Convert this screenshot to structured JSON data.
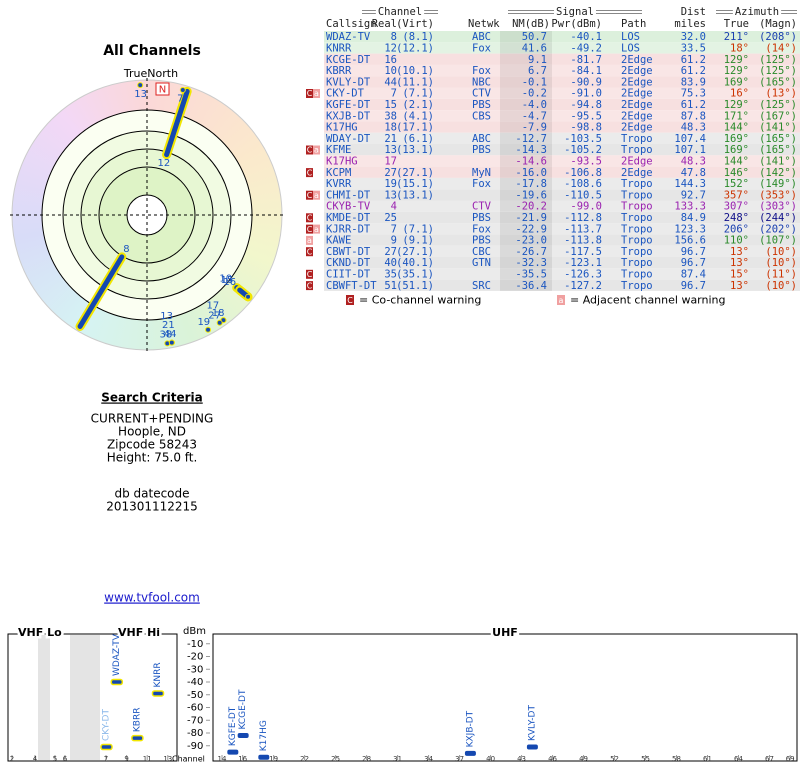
{
  "title": "All Channels",
  "polar": {
    "north_label": "TrueNorth",
    "north_marker": "N",
    "points": [
      {
        "channel": 8,
        "azimuth": 211,
        "nm": 50.7
      },
      {
        "channel": 12,
        "azimuth": 18,
        "nm": 41.6
      },
      {
        "channel": 16,
        "azimuth": 129,
        "nm": 9.1
      },
      {
        "channel": 10,
        "azimuth": 129,
        "nm": 6.7
      },
      {
        "channel": 44,
        "azimuth": 169,
        "nm": -0.1
      },
      {
        "channel": 7,
        "azimuth": 16,
        "nm": -0.2
      },
      {
        "channel": 15,
        "azimuth": 129,
        "nm": -4.0
      },
      {
        "channel": 38,
        "azimuth": 171,
        "nm": -4.7
      },
      {
        "channel": 18,
        "azimuth": 144,
        "nm": -7.9
      },
      {
        "channel": 21,
        "azimuth": 169,
        "nm": -12.7
      },
      {
        "channel": 13,
        "azimuth": 169,
        "nm": -14.3
      },
      {
        "channel": 17,
        "azimuth": 144,
        "nm": -14.6
      },
      {
        "channel": 27,
        "azimuth": 146,
        "nm": -16.0
      },
      {
        "channel": 19,
        "azimuth": 152,
        "nm": -17.8
      },
      {
        "channel": 13,
        "azimuth": 357,
        "nm": -19.6
      }
    ]
  },
  "criteria": {
    "heading": "Search Criteria",
    "lines": [
      "CURRENT+PENDING",
      "Hoople, ND",
      "Zipcode 58243",
      "Height: 75.0 ft."
    ],
    "datecode_label": "db datecode",
    "datecode": "201301112215",
    "link": "www.tvfool.com"
  },
  "table": {
    "groups": [
      "Channel",
      "Signal",
      "Dist",
      "Azimuth"
    ],
    "columns": [
      "Callsign",
      "Real",
      "(Virt)",
      "Netwk",
      "NM(dB)",
      "Pwr(dBm)",
      "Path",
      "miles",
      "True",
      "(Magn)"
    ],
    "path_colors": {
      "LOS": "#dcf0dc",
      "2Edge": "#f7e0e0",
      "Tropo": "#e6e6e6"
    },
    "rows": [
      {
        "callsign": "WDAZ-TV",
        "real": 8,
        "virt": "(8.1)",
        "netwk": "ABC",
        "nm": "50.7",
        "pwr": "-40.1",
        "path": "LOS",
        "dist": "32.0",
        "az": "211°",
        "magn": "(208°)",
        "warn": [],
        "color": "#1a55c0",
        "az_color": "#1a3fb0"
      },
      {
        "callsign": "KNRR",
        "real": 12,
        "virt": "(12.1)",
        "netwk": "Fox",
        "nm": "41.6",
        "pwr": "-49.2",
        "path": "LOS",
        "dist": "33.5",
        "az": "18°",
        "magn": "(14°)",
        "warn": [],
        "color": "#1a55c0",
        "az_color": "#cc3300"
      },
      {
        "callsign": "KCGE-DT",
        "real": 16,
        "virt": null,
        "netwk": null,
        "nm": "9.1",
        "pwr": "-81.7",
        "path": "2Edge",
        "dist": "61.2",
        "az": "129°",
        "magn": "(125°)",
        "warn": [],
        "color": "#1a55c0",
        "az_color": "#2a8a2a"
      },
      {
        "callsign": "KBRR",
        "real": 10,
        "virt": "(10.1)",
        "netwk": "Fox",
        "nm": "6.7",
        "pwr": "-84.1",
        "path": "2Edge",
        "dist": "61.2",
        "az": "129°",
        "magn": "(125°)",
        "warn": [],
        "color": "#1a55c0",
        "az_color": "#2a8a2a"
      },
      {
        "callsign": "KVLY-DT",
        "real": 44,
        "virt": "(11.1)",
        "netwk": "NBC",
        "nm": "-0.1",
        "pwr": "-90.9",
        "path": "2Edge",
        "dist": "83.9",
        "az": "169°",
        "magn": "(165°)",
        "warn": [],
        "color": "#1a55c0",
        "az_color": "#2a8a2a"
      },
      {
        "callsign": "CKY-DT",
        "real": 7,
        "virt": "(7.1)",
        "netwk": "CTV",
        "nm": "-0.2",
        "pwr": "-91.0",
        "path": "2Edge",
        "dist": "75.3",
        "az": "16°",
        "magn": "(13°)",
        "warn": [
          "C",
          "a"
        ],
        "color": "#1a55c0",
        "az_color": "#cc3300"
      },
      {
        "callsign": "KGFE-DT",
        "real": 15,
        "virt": "(2.1)",
        "netwk": "PBS",
        "nm": "-4.0",
        "pwr": "-94.8",
        "path": "2Edge",
        "dist": "61.2",
        "az": "129°",
        "magn": "(125°)",
        "warn": [],
        "color": "#1a55c0",
        "az_color": "#2a8a2a"
      },
      {
        "callsign": "KXJB-DT",
        "real": 38,
        "virt": "(4.1)",
        "netwk": "CBS",
        "nm": "-4.7",
        "pwr": "-95.5",
        "path": "2Edge",
        "dist": "87.8",
        "az": "171°",
        "magn": "(167°)",
        "warn": [],
        "color": "#1a55c0",
        "az_color": "#2a8a2a"
      },
      {
        "callsign": "K17HG",
        "real": 18,
        "virt": "(17.1)",
        "netwk": null,
        "nm": "-7.9",
        "pwr": "-98.8",
        "path": "2Edge",
        "dist": "48.3",
        "az": "144°",
        "magn": "(141°)",
        "warn": [],
        "color": "#1a55c0",
        "az_color": "#2a8a2a"
      },
      {
        "callsign": "WDAY-DT",
        "real": 21,
        "virt": "(6.1)",
        "netwk": "ABC",
        "nm": "-12.7",
        "pwr": "-103.5",
        "path": "Tropo",
        "dist": "107.4",
        "az": "169°",
        "magn": "(165°)",
        "warn": [],
        "color": "#1a55c0",
        "az_color": "#2a8a2a"
      },
      {
        "callsign": "KFME",
        "real": 13,
        "virt": "(13.1)",
        "netwk": "PBS",
        "nm": "-14.3",
        "pwr": "-105.2",
        "path": "Tropo",
        "dist": "107.1",
        "az": "169°",
        "magn": "(165°)",
        "warn": [
          "C",
          "a"
        ],
        "color": "#1a55c0",
        "az_color": "#2a8a2a"
      },
      {
        "callsign": "K17HG",
        "real": 17,
        "virt": null,
        "netwk": null,
        "nm": "-14.6",
        "pwr": "-93.5",
        "path": "2Edge",
        "dist": "48.3",
        "az": "144°",
        "magn": "(141°)",
        "warn": [],
        "color": "#9a22b0",
        "az_color": "#2a8a2a"
      },
      {
        "callsign": "KCPM",
        "real": 27,
        "virt": "(27.1)",
        "netwk": "MyN",
        "nm": "-16.0",
        "pwr": "-106.8",
        "path": "2Edge",
        "dist": "47.8",
        "az": "146°",
        "magn": "(142°)",
        "warn": [
          "C"
        ],
        "color": "#1a55c0",
        "az_color": "#2a8a2a"
      },
      {
        "callsign": "KVRR",
        "real": 19,
        "virt": "(15.1)",
        "netwk": "Fox",
        "nm": "-17.8",
        "pwr": "-108.6",
        "path": "Tropo",
        "dist": "144.3",
        "az": "152°",
        "magn": "(149°)",
        "warn": [],
        "color": "#1a55c0",
        "az_color": "#2a8a2a"
      },
      {
        "callsign": "CHMI-DT",
        "real": 13,
        "virt": "(13.1)",
        "netwk": null,
        "nm": "-19.6",
        "pwr": "-110.5",
        "path": "Tropo",
        "dist": "92.7",
        "az": "357°",
        "magn": "(353°)",
        "warn": [
          "C",
          "a"
        ],
        "color": "#1a55c0",
        "az_color": "#cc3300"
      },
      {
        "callsign": "CKYB-TV",
        "real": 4,
        "virt": null,
        "netwk": "CTV",
        "nm": "-20.2",
        "pwr": "-99.0",
        "path": "Tropo",
        "dist": "133.3",
        "az": "307°",
        "magn": "(303°)",
        "warn": [],
        "color": "#9a22b0",
        "az_color": "#9a22b0"
      },
      {
        "callsign": "KMDE-DT",
        "real": 25,
        "virt": null,
        "netwk": "PBS",
        "nm": "-21.9",
        "pwr": "-112.8",
        "path": "Tropo",
        "dist": "84.9",
        "az": "248°",
        "magn": "(244°)",
        "warn": [
          "C"
        ],
        "color": "#1a55c0",
        "az_color": "#10108a"
      },
      {
        "callsign": "KJRR-DT",
        "real": 7,
        "virt": "(7.1)",
        "netwk": "Fox",
        "nm": "-22.9",
        "pwr": "-113.7",
        "path": "Tropo",
        "dist": "123.3",
        "az": "206°",
        "magn": "(202°)",
        "warn": [
          "C",
          "a"
        ],
        "color": "#1a55c0",
        "az_color": "#1a3fb0"
      },
      {
        "callsign": "KAWE",
        "real": 9,
        "virt": "(9.1)",
        "netwk": "PBS",
        "nm": "-23.0",
        "pwr": "-113.8",
        "path": "Tropo",
        "dist": "156.6",
        "az": "110°",
        "magn": "(107°)",
        "warn": [
          "a"
        ],
        "color": "#1a55c0",
        "az_color": "#2a8a2a"
      },
      {
        "callsign": "CBWT-DT",
        "real": 27,
        "virt": "(27.1)",
        "netwk": "CBC",
        "nm": "-26.7",
        "pwr": "-117.5",
        "path": "Tropo",
        "dist": "96.7",
        "az": "13°",
        "magn": "(10°)",
        "warn": [
          "C"
        ],
        "color": "#1a55c0",
        "az_color": "#cc3300"
      },
      {
        "callsign": "CKND-DT",
        "real": 40,
        "virt": "(40.1)",
        "netwk": "GTN",
        "nm": "-32.3",
        "pwr": "-123.1",
        "path": "Tropo",
        "dist": "96.7",
        "az": "13°",
        "magn": "(10°)",
        "warn": [],
        "color": "#1a55c0",
        "az_color": "#cc3300"
      },
      {
        "callsign": "CIIT-DT",
        "real": 35,
        "virt": "(35.1)",
        "netwk": null,
        "nm": "-35.5",
        "pwr": "-126.3",
        "path": "Tropo",
        "dist": "87.4",
        "az": "15°",
        "magn": "(11°)",
        "warn": [
          "C"
        ],
        "color": "#1a55c0",
        "az_color": "#cc3300"
      },
      {
        "callsign": "CBWFT-DT",
        "real": 51,
        "virt": "(51.1)",
        "netwk": "SRC",
        "nm": "-36.4",
        "pwr": "-127.2",
        "path": "Tropo",
        "dist": "96.7",
        "az": "13°",
        "magn": "(10°)",
        "warn": [
          "C"
        ],
        "color": "#1a55c0",
        "az_color": "#cc3300"
      }
    ],
    "legend": [
      {
        "icon": "C",
        "text": "= Co-channel warning"
      },
      {
        "icon": "a",
        "text": "= Adjacent channel warning"
      }
    ]
  },
  "spectrum": {
    "sections": [
      "VHF Lo",
      "VHF Hi",
      "UHF"
    ],
    "y_label": "dBm",
    "x_label": "Channel",
    "ylim": [
      -100,
      0
    ],
    "yticks": [
      -10,
      -20,
      -30,
      -40,
      -50,
      -60,
      -70,
      -80,
      -90
    ],
    "vhf_ticks": [
      2,
      4,
      5,
      6,
      7,
      9,
      11,
      13
    ],
    "uhf_ticks": [
      14,
      16,
      19,
      22,
      25,
      28,
      31,
      34,
      37,
      40,
      43,
      46,
      49,
      52,
      55,
      58,
      61,
      64,
      67,
      69
    ],
    "stations": [
      {
        "callsign": "WDAZ-TV",
        "channel": 8,
        "dbm": -40
      },
      {
        "callsign": "KNRR",
        "channel": 12,
        "dbm": -49
      },
      {
        "callsign": "KBRR",
        "channel": 10,
        "dbm": -84
      },
      {
        "callsign": "CKY-DT",
        "channel": 7,
        "dbm": -91
      },
      {
        "callsign": "KGFE-DT",
        "channel": 15,
        "dbm": -95
      },
      {
        "callsign": "KCGE-DT",
        "channel": 16,
        "dbm": -82
      },
      {
        "callsign": "K17HG",
        "channel": 18,
        "dbm": -99
      },
      {
        "callsign": "KXJB-DT",
        "channel": 38,
        "dbm": -96
      },
      {
        "callsign": "KVLY-DT",
        "channel": 44,
        "dbm": -91
      }
    ]
  }
}
